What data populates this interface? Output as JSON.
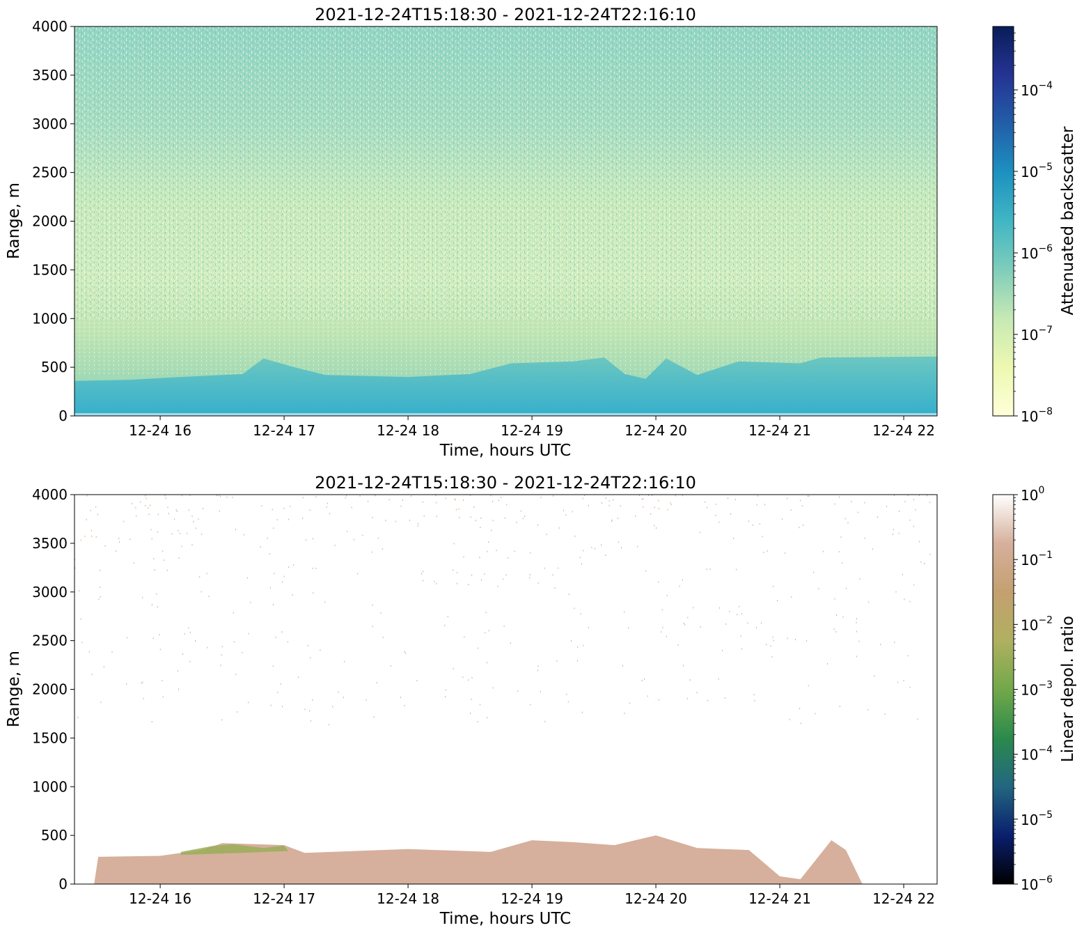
{
  "chart_data": [
    {
      "type": "heatmap",
      "title": "2021-12-24T15:18:30 - 2021-12-24T22:16:10",
      "xlabel": "Time, hours UTC",
      "ylabel": "Range, m",
      "x_range": [
        "2021-12-24T15:18:30",
        "2021-12-24T22:16:10"
      ],
      "x_ticks": [
        "12-24 16",
        "12-24 17",
        "12-24 18",
        "12-24 19",
        "12-24 20",
        "12-24 21",
        "12-24 22"
      ],
      "ylim": [
        0,
        4000
      ],
      "y_ticks": [
        "0",
        "500",
        "1000",
        "1500",
        "2000",
        "2500",
        "3000",
        "3500",
        "4000"
      ],
      "colorbar": {
        "label": "Attenuated backscatter",
        "scale": "log",
        "range": [
          1e-08,
          0.0006
        ],
        "ticks": [
          {
            "base": "10",
            "exp": "−8"
          },
          {
            "base": "10",
            "exp": "−7"
          },
          {
            "base": "10",
            "exp": "−6"
          },
          {
            "base": "10",
            "exp": "−5"
          },
          {
            "base": "10",
            "exp": "−4"
          }
        ],
        "colormap": [
          "#ffffd9",
          "#edf8b1",
          "#c7e9b4",
          "#7fcdbb",
          "#41b6c4",
          "#1d91c0",
          "#225ea8",
          "#253494",
          "#081d58"
        ]
      },
      "boundary_layer_top_m": [
        {
          "time": "15:20",
          "value": 360
        },
        {
          "time": "15:45",
          "value": 370
        },
        {
          "time": "16:10",
          "value": 400
        },
        {
          "time": "16:40",
          "value": 430
        },
        {
          "time": "16:50",
          "value": 590
        },
        {
          "time": "17:05",
          "value": 500
        },
        {
          "time": "17:20",
          "value": 420
        },
        {
          "time": "18:00",
          "value": 400
        },
        {
          "time": "18:30",
          "value": 430
        },
        {
          "time": "18:50",
          "value": 540
        },
        {
          "time": "19:20",
          "value": 560
        },
        {
          "time": "19:35",
          "value": 600
        },
        {
          "time": "19:45",
          "value": 430
        },
        {
          "time": "19:55",
          "value": 380
        },
        {
          "time": "20:05",
          "value": 590
        },
        {
          "time": "20:20",
          "value": 420
        },
        {
          "time": "20:40",
          "value": 560
        },
        {
          "time": "21:10",
          "value": 540
        },
        {
          "time": "21:20",
          "value": 600
        },
        {
          "time": "22:16",
          "value": 610
        }
      ]
    },
    {
      "type": "heatmap",
      "title": "2021-12-24T15:18:30 - 2021-12-24T22:16:10",
      "xlabel": "Time, hours UTC",
      "ylabel": "Range, m",
      "x_range": [
        "2021-12-24T15:18:30",
        "2021-12-24T22:16:10"
      ],
      "x_ticks": [
        "12-24 16",
        "12-24 17",
        "12-24 18",
        "12-24 19",
        "12-24 20",
        "12-24 21",
        "12-24 22"
      ],
      "ylim": [
        0,
        4000
      ],
      "y_ticks": [
        "0",
        "500",
        "1000",
        "1500",
        "2000",
        "2500",
        "3000",
        "3500",
        "4000"
      ],
      "colorbar": {
        "label": "Linear depol. ratio",
        "scale": "log",
        "range": [
          1e-06,
          1
        ],
        "ticks": [
          {
            "base": "10",
            "exp": "−6"
          },
          {
            "base": "10",
            "exp": "−5"
          },
          {
            "base": "10",
            "exp": "−4"
          },
          {
            "base": "10",
            "exp": "−3"
          },
          {
            "base": "10",
            "exp": "−2"
          },
          {
            "base": "10",
            "exp": "−1"
          },
          {
            "base": "10",
            "exp": "0"
          }
        ],
        "colormap": [
          "#000000",
          "#0a1f6e",
          "#226680",
          "#2b8a4c",
          "#72a84a",
          "#b0b060",
          "#c4a070",
          "#d6b09c",
          "#ffffff"
        ]
      },
      "signal_top_m": [
        {
          "time": "15:28",
          "value": 0
        },
        {
          "time": "15:30",
          "value": 280
        },
        {
          "time": "16:00",
          "value": 290
        },
        {
          "time": "16:20",
          "value": 350
        },
        {
          "time": "16:30",
          "value": 420
        },
        {
          "time": "17:00",
          "value": 400
        },
        {
          "time": "17:10",
          "value": 320
        },
        {
          "time": "18:00",
          "value": 360
        },
        {
          "time": "18:40",
          "value": 330
        },
        {
          "time": "19:00",
          "value": 450
        },
        {
          "time": "19:20",
          "value": 430
        },
        {
          "time": "19:40",
          "value": 400
        },
        {
          "time": "20:00",
          "value": 500
        },
        {
          "time": "20:20",
          "value": 370
        },
        {
          "time": "20:45",
          "value": 350
        },
        {
          "time": "20:50",
          "value": 260
        },
        {
          "time": "21:00",
          "value": 80
        },
        {
          "time": "21:10",
          "value": 50
        },
        {
          "time": "21:25",
          "value": 450
        },
        {
          "time": "21:32",
          "value": 350
        },
        {
          "time": "21:40",
          "value": 0
        }
      ]
    }
  ]
}
